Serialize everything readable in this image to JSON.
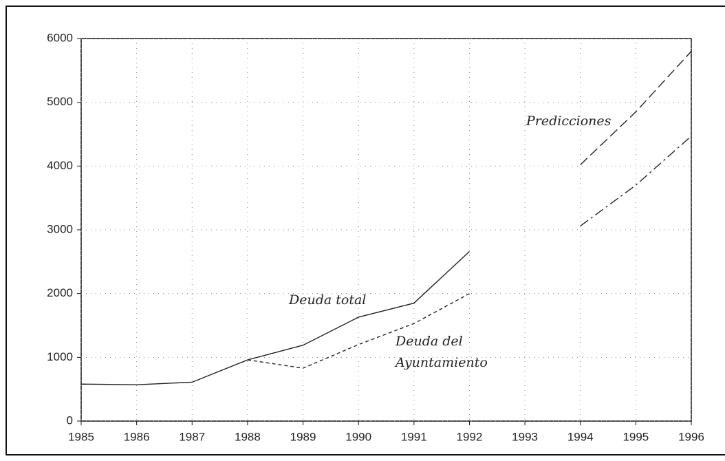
{
  "chart_data": {
    "type": "line",
    "x": [
      1985,
      1986,
      1987,
      1988,
      1989,
      1990,
      1991,
      1992,
      1993,
      1994,
      1995,
      1996
    ],
    "series": [
      {
        "color": "#222222",
        "dash": "solid",
        "values": [
          580,
          570,
          610,
          960,
          1190,
          1630,
          1850,
          2660,
          null,
          null,
          null,
          null
        ]
      },
      {
        "color": "#222222",
        "dash": "short",
        "values": [
          null,
          null,
          null,
          960,
          830,
          1200,
          1530,
          2000,
          null,
          null,
          null,
          null
        ]
      },
      {
        "color": "#222222",
        "dash": "long",
        "values": [
          null,
          null,
          null,
          null,
          null,
          null,
          null,
          null,
          null,
          4020,
          4850,
          5800
        ]
      },
      {
        "color": "#222222",
        "dash": "dashdot",
        "values": [
          null,
          null,
          null,
          null,
          null,
          null,
          null,
          null,
          null,
          3060,
          3700,
          4470
        ]
      }
    ],
    "annotations": [
      "Deuda total",
      "Deuda del",
      "Ayuntamiento",
      "Predicciones"
    ],
    "xlim": [
      1985,
      1996
    ],
    "xticks": [
      1985,
      1986,
      1987,
      1988,
      1989,
      1990,
      1991,
      1992,
      1993,
      1994,
      1995,
      1996
    ],
    "ylim": [
      0,
      6000
    ],
    "yticks": [
      0,
      1000,
      2000,
      3000,
      4000,
      5000,
      6000
    ],
    "grid": true
  }
}
